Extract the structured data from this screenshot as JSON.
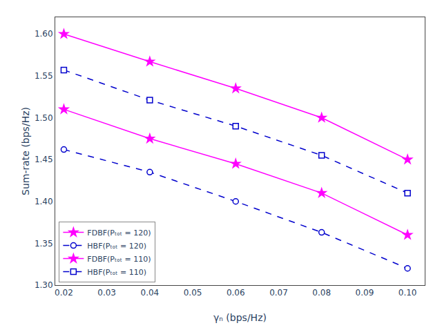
{
  "chart_data": {
    "type": "line",
    "xlabel": "γₙ (bps/Hz)",
    "ylabel": "Sum-rate (bps/Hz)",
    "x": [
      0.02,
      0.04,
      0.06,
      0.08,
      0.1
    ],
    "series": [
      {
        "name": "FDBF(Pₜₒₜ = 120)",
        "color": "#FF00FF",
        "marker": "star",
        "line_style": "solid",
        "values": [
          1.6,
          1.567,
          1.535,
          1.5,
          1.45
        ]
      },
      {
        "name": "HBF(Pₜₒₜ = 120)",
        "color": "#0000CD",
        "marker": "circle-open",
        "line_style": "dashed",
        "values": [
          1.462,
          1.435,
          1.4,
          1.363,
          1.32
        ]
      },
      {
        "name": "FDBF(Pₜₒₜ = 110)",
        "color": "#FF00FF",
        "marker": "star",
        "line_style": "solid",
        "values": [
          1.51,
          1.475,
          1.445,
          1.41,
          1.36
        ]
      },
      {
        "name": "HBF(Pₜₒₜ = 110)",
        "color": "#0000CD",
        "marker": "square-open",
        "line_style": "dashed",
        "values": [
          1.557,
          1.521,
          1.49,
          1.455,
          1.41
        ]
      }
    ],
    "xlim": [
      0.018,
      0.104
    ],
    "ylim": [
      1.3,
      1.62
    ],
    "xticks": [
      0.02,
      0.03,
      0.04,
      0.05,
      0.06,
      0.07,
      0.08,
      0.09,
      {
        "value": 0.1,
        "label": "0.10"
      }
    ],
    "yticks": [
      {
        "value": 1.3,
        "label": "1.30"
      },
      1.35,
      {
        "value": 1.4,
        "label": "1.40"
      },
      1.45,
      {
        "value": 1.5,
        "label": "1.50"
      },
      1.55,
      {
        "value": 1.6,
        "label": "1.60"
      }
    ],
    "grid": false,
    "legend": "lower left"
  }
}
